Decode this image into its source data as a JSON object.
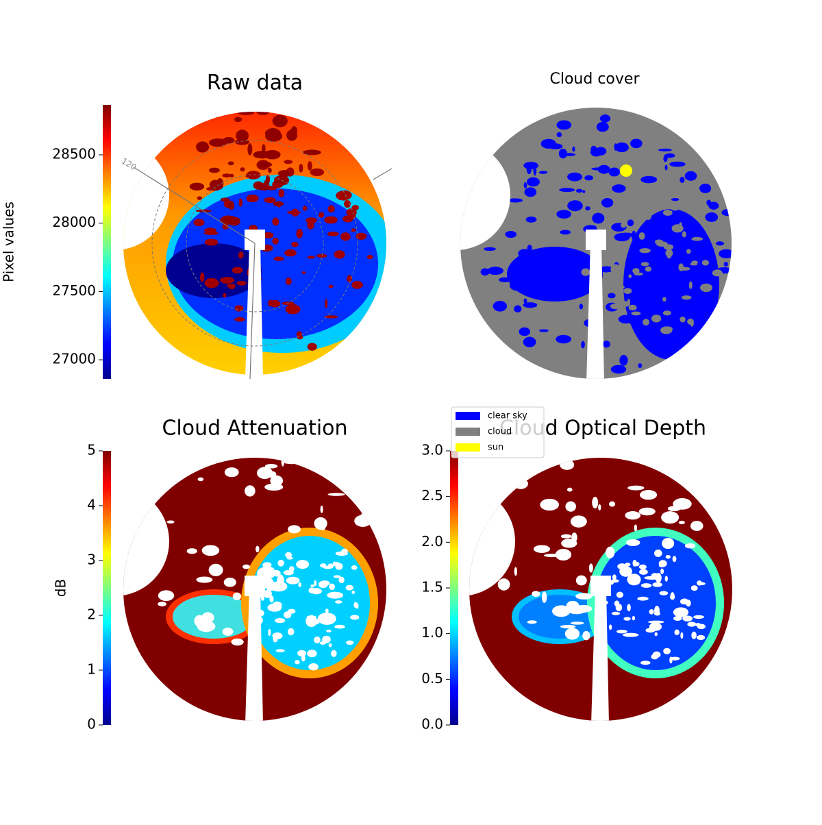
{
  "chart_data": [
    {
      "type": "image",
      "title": "Raw data",
      "colorbar_label": "Pixel values",
      "cmap": "jet",
      "clim": [
        26860,
        28866
      ],
      "cticks": [
        27000,
        27500,
        28000,
        28500
      ],
      "annotation": "120"
    },
    {
      "type": "categorical-image",
      "title": "Cloud cover",
      "series": [
        {
          "name": "clear sky",
          "color": "#0000ff"
        },
        {
          "name": "cloud",
          "color": "#808080"
        },
        {
          "name": "sun",
          "color": "#ffff00"
        }
      ]
    },
    {
      "type": "image",
      "title": "Cloud Attenuation",
      "colorbar_label": "dB",
      "cmap": "jet",
      "clim": [
        0,
        5
      ],
      "cticks": [
        0,
        1,
        2,
        3,
        4,
        5
      ]
    },
    {
      "type": "image",
      "title": "Cloud Optical Depth",
      "cmap": "jet",
      "clim": [
        0,
        3
      ],
      "cticks": [
        {
          "value": 0,
          "label": "0.0"
        },
        0.5,
        {
          "value": 1,
          "label": "1.0"
        },
        1.5,
        {
          "value": 2,
          "label": "2.0"
        },
        2.5,
        {
          "value": 3,
          "label": "3.0"
        }
      ]
    }
  ]
}
